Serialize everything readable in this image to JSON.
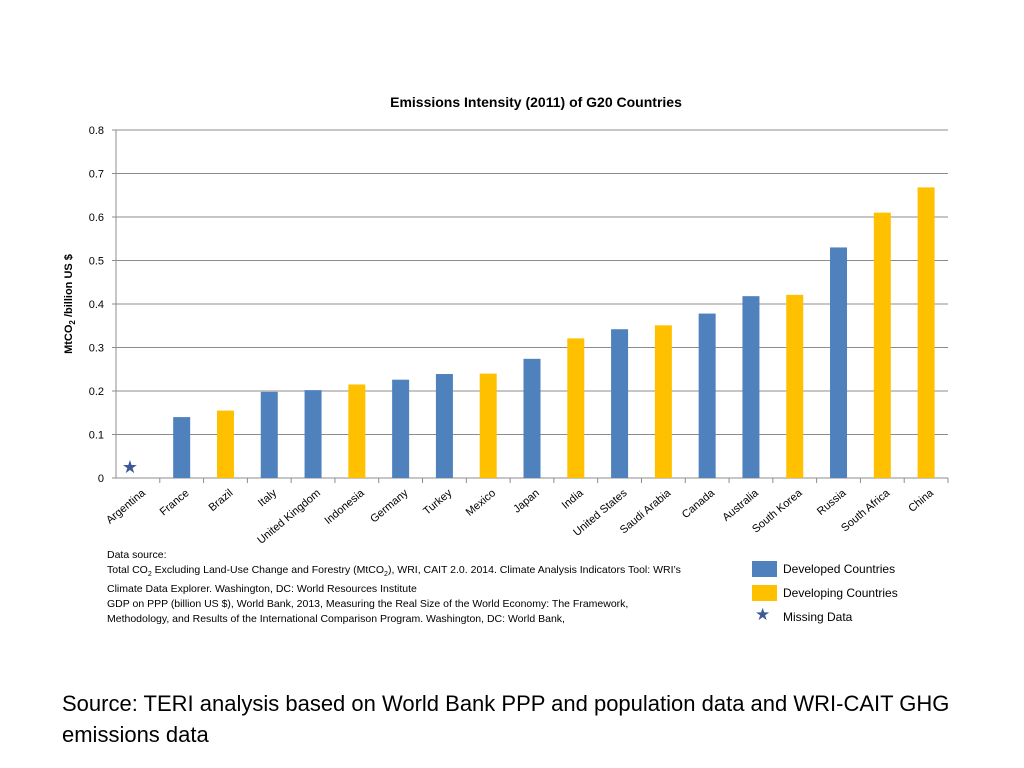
{
  "colors": {
    "developed": "#4F81BD",
    "developing": "#FFC000",
    "missing_star": "#3D5A96",
    "grid": "#8C8C8C"
  },
  "chart_data": {
    "type": "bar",
    "title": "Emissions Intensity (2011) of G20 Countries",
    "xlabel": "",
    "ylabel": "MtCO2 /billion US $",
    "ylim": [
      0,
      0.8
    ],
    "yticks": [
      "0",
      "0.1",
      "0.2",
      "0.3",
      "0.4",
      "0.5",
      "0.6",
      "0.7",
      "0.8"
    ],
    "categories": [
      "Argentina",
      "France",
      "Brazil",
      "Italy",
      "United Kingdom",
      "Indonesia",
      "Germany",
      "Turkey",
      "Mexico",
      "Japan",
      "India",
      "United States",
      "Saudi Arabia",
      "Canada",
      "Australia",
      "South Korea",
      "Russia",
      "South Africa",
      "China"
    ],
    "values": [
      null,
      0.14,
      0.155,
      0.198,
      0.202,
      0.215,
      0.226,
      0.239,
      0.24,
      0.274,
      0.321,
      0.342,
      0.351,
      0.378,
      0.418,
      0.421,
      0.53,
      0.61,
      0.668
    ],
    "groups": [
      "missing",
      "developed",
      "developing",
      "developed",
      "developed",
      "developing",
      "developed",
      "developed",
      "developing",
      "developed",
      "developing",
      "developed",
      "developing",
      "developed",
      "developed",
      "developing",
      "developed",
      "developing",
      "developing"
    ],
    "legend": {
      "developed": "Developed Countries",
      "developing": "Developing Countries",
      "missing": "Missing Data"
    }
  },
  "data_source": {
    "heading": "Data source:",
    "line1_pre": "Total CO",
    "line1_sub1": "2",
    "line1_mid": " Excluding Land-Use Change and Forestry (MtCO",
    "line1_sub2": "2",
    "line1_post": "), WRI, CAIT 2.0. 2014. Climate Analysis Indicators Tool: WRI’s",
    "line2": "Climate Data Explorer. Washington, DC: World Resources Institute",
    "line3": "GDP on PPP (billion US $), World Bank,  2013, Measuring the Real Size of the World Economy: The Framework,",
    "line4": "Methodology, and Results of the International Comparison Program. Washington, DC: World Bank,"
  },
  "page_source": "Source: TERI analysis based on World Bank PPP and population data and WRI-CAIT GHG emissions data"
}
